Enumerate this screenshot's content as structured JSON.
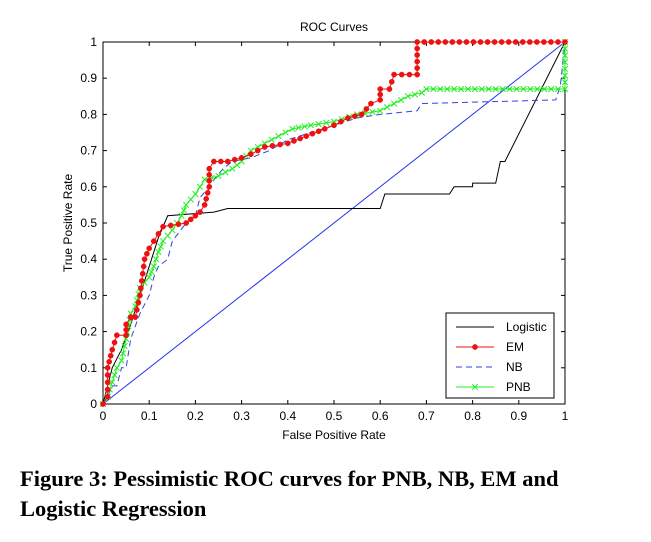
{
  "chart_data": {
    "type": "line",
    "title": "ROC Curves",
    "xlabel": "False Positive Rate",
    "ylabel": "True Positive Rate",
    "xlim": [
      0,
      1
    ],
    "ylim": [
      0,
      1
    ],
    "xticks": [
      "0",
      "0.1",
      "0.2",
      "0.3",
      "0.4",
      "0.5",
      "0.6",
      "0.7",
      "0.8",
      "0.9",
      "1"
    ],
    "yticks": [
      "0",
      "0.1",
      "0.2",
      "0.3",
      "0.4",
      "0.5",
      "0.6",
      "0.7",
      "0.8",
      "0.9",
      "1"
    ],
    "grid": false,
    "legend_position": "bottom-right",
    "series": [
      {
        "name": "Logistic",
        "color": "#000000",
        "style": "solid",
        "marker": "none",
        "points": [
          [
            0,
            0
          ],
          [
            0.01,
            0.05
          ],
          [
            0.02,
            0.1
          ],
          [
            0.04,
            0.15
          ],
          [
            0.06,
            0.22
          ],
          [
            0.08,
            0.3
          ],
          [
            0.1,
            0.38
          ],
          [
            0.12,
            0.46
          ],
          [
            0.14,
            0.52
          ],
          [
            0.24,
            0.53
          ],
          [
            0.27,
            0.54
          ],
          [
            0.6,
            0.54
          ],
          [
            0.61,
            0.58
          ],
          [
            0.75,
            0.58
          ],
          [
            0.76,
            0.6
          ],
          [
            0.8,
            0.6
          ],
          [
            0.8,
            0.61
          ],
          [
            0.85,
            0.61
          ],
          [
            0.86,
            0.67
          ],
          [
            0.87,
            0.67
          ],
          [
            1,
            1
          ]
        ]
      },
      {
        "name": "EM",
        "color": "#ee1111",
        "style": "solid",
        "marker": "circle",
        "points": [
          [
            0,
            0
          ],
          [
            0.01,
            0.02
          ],
          [
            0.01,
            0.1
          ],
          [
            0.02,
            0.15
          ],
          [
            0.03,
            0.19
          ],
          [
            0.05,
            0.19
          ],
          [
            0.05,
            0.22
          ],
          [
            0.06,
            0.24
          ],
          [
            0.07,
            0.24
          ],
          [
            0.08,
            0.3
          ],
          [
            0.09,
            0.4
          ],
          [
            0.1,
            0.43
          ],
          [
            0.11,
            0.45
          ],
          [
            0.12,
            0.47
          ],
          [
            0.13,
            0.49
          ],
          [
            0.18,
            0.5
          ],
          [
            0.2,
            0.52
          ],
          [
            0.21,
            0.53
          ],
          [
            0.22,
            0.55
          ],
          [
            0.23,
            0.6
          ],
          [
            0.23,
            0.65
          ],
          [
            0.24,
            0.67
          ],
          [
            0.27,
            0.67
          ],
          [
            0.3,
            0.68
          ],
          [
            0.32,
            0.69
          ],
          [
            0.35,
            0.71
          ],
          [
            0.4,
            0.72
          ],
          [
            0.44,
            0.74
          ],
          [
            0.48,
            0.76
          ],
          [
            0.5,
            0.77
          ],
          [
            0.53,
            0.79
          ],
          [
            0.56,
            0.8
          ],
          [
            0.58,
            0.83
          ],
          [
            0.6,
            0.84
          ],
          [
            0.6,
            0.87
          ],
          [
            0.62,
            0.87
          ],
          [
            0.63,
            0.91
          ],
          [
            0.68,
            0.91
          ],
          [
            0.68,
            1
          ],
          [
            1,
            1
          ]
        ]
      },
      {
        "name": "NB",
        "color": "#3344dd",
        "style": "dashed",
        "marker": "none",
        "points": [
          [
            0,
            0
          ],
          [
            0.01,
            0.02
          ],
          [
            0.02,
            0.05
          ],
          [
            0.03,
            0.05
          ],
          [
            0.04,
            0.1
          ],
          [
            0.05,
            0.1
          ],
          [
            0.06,
            0.18
          ],
          [
            0.08,
            0.25
          ],
          [
            0.1,
            0.3
          ],
          [
            0.11,
            0.35
          ],
          [
            0.12,
            0.38
          ],
          [
            0.14,
            0.4
          ],
          [
            0.15,
            0.45
          ],
          [
            0.18,
            0.5
          ],
          [
            0.2,
            0.52
          ],
          [
            0.21,
            0.57
          ],
          [
            0.23,
            0.6
          ],
          [
            0.24,
            0.62
          ],
          [
            0.26,
            0.65
          ],
          [
            0.28,
            0.67
          ],
          [
            0.32,
            0.68
          ],
          [
            0.36,
            0.7
          ],
          [
            0.4,
            0.73
          ],
          [
            0.45,
            0.75
          ],
          [
            0.5,
            0.77
          ],
          [
            0.55,
            0.79
          ],
          [
            0.6,
            0.8
          ],
          [
            0.68,
            0.81
          ],
          [
            0.69,
            0.83
          ],
          [
            0.98,
            0.84
          ],
          [
            0.99,
            0.88
          ],
          [
            1,
            1
          ]
        ]
      },
      {
        "name": "PNB",
        "color": "#22ee22",
        "style": "solid",
        "marker": "x",
        "points": [
          [
            0,
            0
          ],
          [
            0.01,
            0.02
          ],
          [
            0.02,
            0.06
          ],
          [
            0.03,
            0.1
          ],
          [
            0.04,
            0.12
          ],
          [
            0.05,
            0.18
          ],
          [
            0.06,
            0.25
          ],
          [
            0.07,
            0.27
          ],
          [
            0.08,
            0.32
          ],
          [
            0.1,
            0.35
          ],
          [
            0.11,
            0.38
          ],
          [
            0.12,
            0.42
          ],
          [
            0.13,
            0.45
          ],
          [
            0.15,
            0.48
          ],
          [
            0.17,
            0.52
          ],
          [
            0.18,
            0.55
          ],
          [
            0.2,
            0.58
          ],
          [
            0.22,
            0.62
          ],
          [
            0.25,
            0.63
          ],
          [
            0.28,
            0.65
          ],
          [
            0.3,
            0.67
          ],
          [
            0.32,
            0.7
          ],
          [
            0.35,
            0.72
          ],
          [
            0.38,
            0.74
          ],
          [
            0.41,
            0.76
          ],
          [
            0.45,
            0.77
          ],
          [
            0.5,
            0.78
          ],
          [
            0.55,
            0.8
          ],
          [
            0.6,
            0.81
          ],
          [
            0.63,
            0.83
          ],
          [
            0.66,
            0.85
          ],
          [
            0.69,
            0.86
          ],
          [
            0.7,
            0.87
          ],
          [
            0.82,
            0.87
          ],
          [
            1,
            0.87
          ],
          [
            1,
            1
          ]
        ]
      },
      {
        "name": "",
        "color": "#2233ee",
        "style": "solid",
        "marker": "none",
        "points": [
          [
            0,
            0
          ],
          [
            1,
            1
          ]
        ]
      }
    ]
  },
  "caption": "Figure 3: Pessimistic ROC curves for PNB, NB, EM and Logistic Regression"
}
